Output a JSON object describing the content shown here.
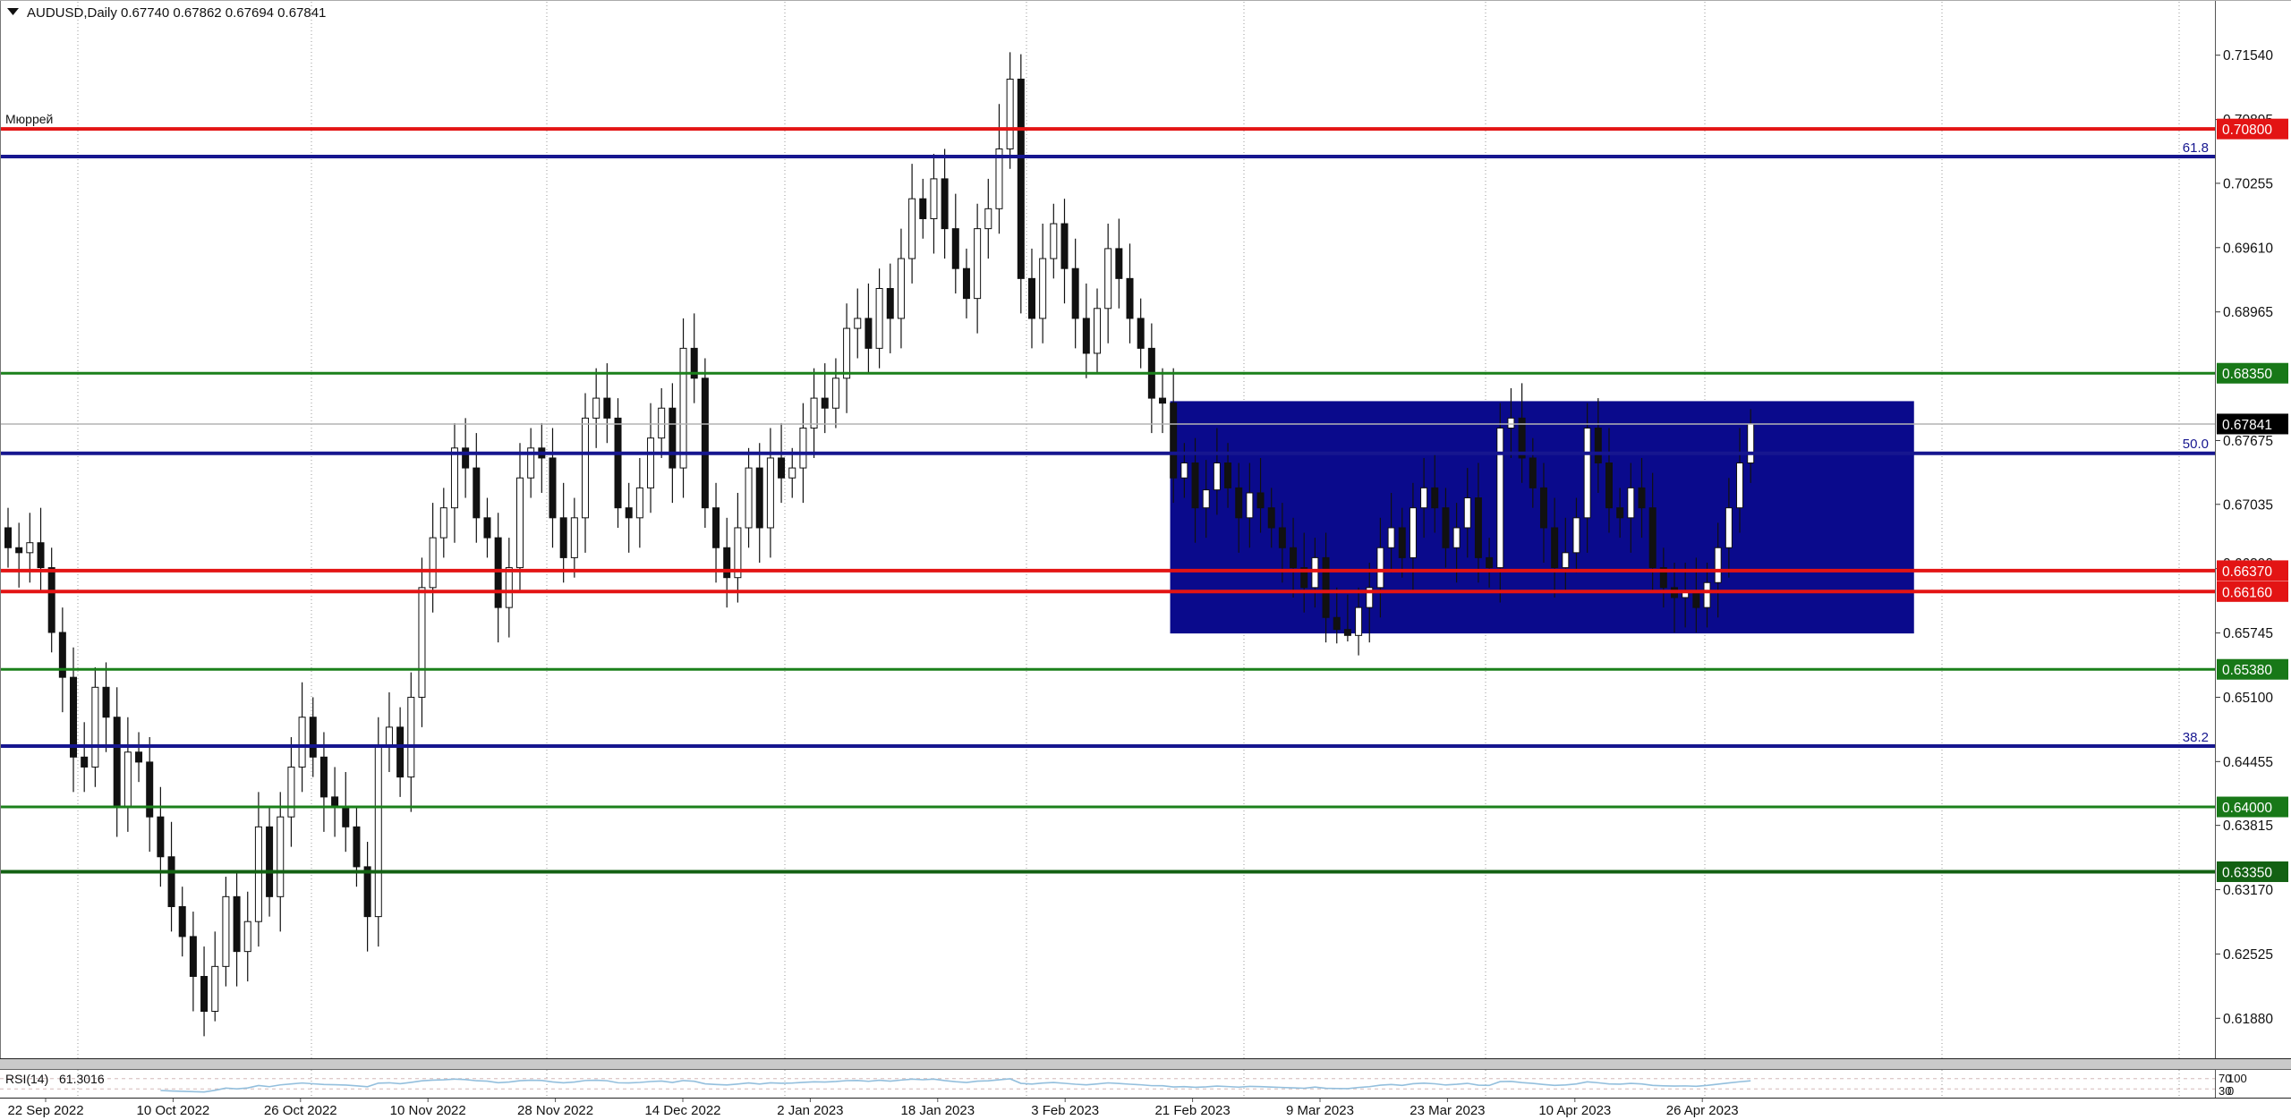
{
  "title": {
    "text": "AUDUSD,Daily  0.67740 0.67862 0.67694 0.67841",
    "symbol": "AUDUSD",
    "timeframe": "Daily",
    "open": "0.67740",
    "high": "0.67862",
    "low": "0.67694",
    "close": "0.67841",
    "dropdown_icon": "symbol-dropdown"
  },
  "annotations": {
    "murray": "Мюррей"
  },
  "colors": {
    "red": "#e31414",
    "green": "#1b801b",
    "green_badge": "#187818",
    "dark_green": "#136113",
    "navy": "#16168f",
    "zone_fill": "#0a0a8c",
    "bid_line": "#b4b4b4",
    "grid": "#999999",
    "rsi_line": "#93bfdd",
    "rsi_level": "#d4b8b8",
    "current_badge_bg": "#000000"
  },
  "rsi": {
    "label": "RSI(14)",
    "value": "61.3016",
    "upper_level": "70",
    "lower_level": "30",
    "scale_max": "100",
    "scale_min": "0"
  },
  "chart_data": {
    "type": "candlestick",
    "title": "AUDUSD Daily",
    "ylim": [
      0.615,
      0.718
    ],
    "grid": "vertical-dotted-monthly",
    "price_axis_ticks": [
      "0.71540",
      "0.70895",
      "0.70255",
      "0.69610",
      "0.68965",
      "0.67675",
      "0.67035",
      "0.66390",
      "0.65745",
      "0.65100",
      "0.64455",
      "0.63815",
      "0.63170",
      "0.62525",
      "0.61880"
    ],
    "price_axis_tick_values": [
      0.7154,
      0.70895,
      0.70255,
      0.6961,
      0.68965,
      0.67675,
      0.67035,
      0.6639,
      0.65745,
      0.651,
      0.64455,
      0.63815,
      0.6317,
      0.62525,
      0.6188
    ],
    "axis_badges": [
      {
        "label": "0.70800",
        "value": 0.708,
        "type": "red"
      },
      {
        "label": "0.68350",
        "value": 0.6835,
        "type": "green"
      },
      {
        "label": "0.67841",
        "value": 0.67841,
        "type": "current"
      },
      {
        "label": "0.66370",
        "value": 0.6637,
        "type": "red"
      },
      {
        "label": "0.66160",
        "value": 0.6616,
        "type": "red"
      },
      {
        "label": "0.65380",
        "value": 0.6538,
        "type": "green"
      },
      {
        "label": "0.64000",
        "value": 0.64,
        "type": "green"
      },
      {
        "label": "0.63350",
        "value": 0.6335,
        "type": "dark_green"
      }
    ],
    "h_lines": [
      {
        "value": 0.708,
        "color": "red",
        "width": 4,
        "name": "murray-resistance-line"
      },
      {
        "value": 0.6835,
        "color": "green",
        "width": 3,
        "name": "resistance-line"
      },
      {
        "value": 0.6637,
        "color": "red",
        "width": 4,
        "name": "murray-support-line"
      },
      {
        "value": 0.6616,
        "color": "red",
        "width": 4,
        "name": "murray-support-line"
      },
      {
        "value": 0.6538,
        "color": "green",
        "width": 3,
        "name": "support-line"
      },
      {
        "value": 0.64,
        "color": "green",
        "width": 3,
        "name": "support-line"
      },
      {
        "value": 0.6335,
        "color": "dark_green",
        "width": 4,
        "name": "support-line"
      }
    ],
    "fib_levels": [
      {
        "label": "61.8",
        "value": 0.70523
      },
      {
        "label": "50.0",
        "value": 0.67547
      },
      {
        "label": "38.2",
        "value": 0.6461
      }
    ],
    "bid_price": 0.67841,
    "zone": {
      "bar_start": 106.7,
      "bar_end": 175.0,
      "price_top": 0.6807,
      "price_bottom": 0.6574
    },
    "date_labels": [
      "22 Sep 2022",
      "10 Oct 2022",
      "26 Oct 2022",
      "10 Nov 2022",
      "28 Nov 2022",
      "14 Dec 2022",
      "2 Jan 2023",
      "18 Jan 2023",
      "3 Feb 2023",
      "21 Feb 2023",
      "9 Mar 2023",
      "23 Mar 2023",
      "10 Apr 2023",
      "26 Apr 2023"
    ],
    "open_first": 0.668,
    "default_wick": 0.002,
    "wick_overrides": {
      "6": {
        "low": 0.6415
      },
      "17": {
        "low": 0.6195
      },
      "18": {
        "low": 0.617
      },
      "19": {
        "low": 0.6185
      },
      "91": {
        "high": 0.7105
      },
      "92": {
        "high": 0.7157
      },
      "121": {
        "low": 0.6565
      },
      "122": {
        "low": 0.6564
      },
      "123": {
        "low": 0.6566
      },
      "160": {
        "high": 0.6799
      }
    },
    "closes": [
      0.666,
      0.6655,
      0.6665,
      0.664,
      0.6575,
      0.653,
      0.645,
      0.644,
      0.652,
      0.649,
      0.64,
      0.6455,
      0.6445,
      0.639,
      0.635,
      0.63,
      0.627,
      0.623,
      0.6195,
      0.624,
      0.631,
      0.6255,
      0.6285,
      0.638,
      0.631,
      0.639,
      0.644,
      0.649,
      0.645,
      0.641,
      0.64,
      0.638,
      0.634,
      0.629,
      0.646,
      0.648,
      0.643,
      0.651,
      0.662,
      0.667,
      0.67,
      0.676,
      0.674,
      0.669,
      0.667,
      0.66,
      0.664,
      0.673,
      0.676,
      0.675,
      0.669,
      0.665,
      0.669,
      0.679,
      0.681,
      0.679,
      0.67,
      0.669,
      0.672,
      0.677,
      0.68,
      0.674,
      0.686,
      0.683,
      0.67,
      0.666,
      0.663,
      0.668,
      0.674,
      0.668,
      0.675,
      0.673,
      0.674,
      0.678,
      0.681,
      0.68,
      0.683,
      0.688,
      0.689,
      0.686,
      0.692,
      0.689,
      0.695,
      0.701,
      0.699,
      0.703,
      0.698,
      0.694,
      0.691,
      0.698,
      0.7,
      0.706,
      0.713,
      0.693,
      0.689,
      0.695,
      0.6985,
      0.694,
      0.689,
      0.6855,
      0.69,
      0.696,
      0.693,
      0.689,
      0.686,
      0.681,
      0.6805,
      0.673,
      0.6745,
      0.67,
      0.6718,
      0.6745,
      0.672,
      0.669,
      0.6715,
      0.67,
      0.668,
      0.666,
      0.664,
      0.662,
      0.665,
      0.659,
      0.6578,
      0.6572,
      0.66,
      0.662,
      0.666,
      0.668,
      0.665,
      0.67,
      0.672,
      0.67,
      0.666,
      0.668,
      0.671,
      0.665,
      0.664,
      0.678,
      0.679,
      0.675,
      0.672,
      0.668,
      0.664,
      0.6655,
      0.669,
      0.678,
      0.6745,
      0.67,
      0.669,
      0.672,
      0.67,
      0.664,
      0.662,
      0.661,
      0.6615,
      0.66,
      0.6625,
      0.666,
      0.67,
      0.6745,
      0.67841
    ]
  }
}
